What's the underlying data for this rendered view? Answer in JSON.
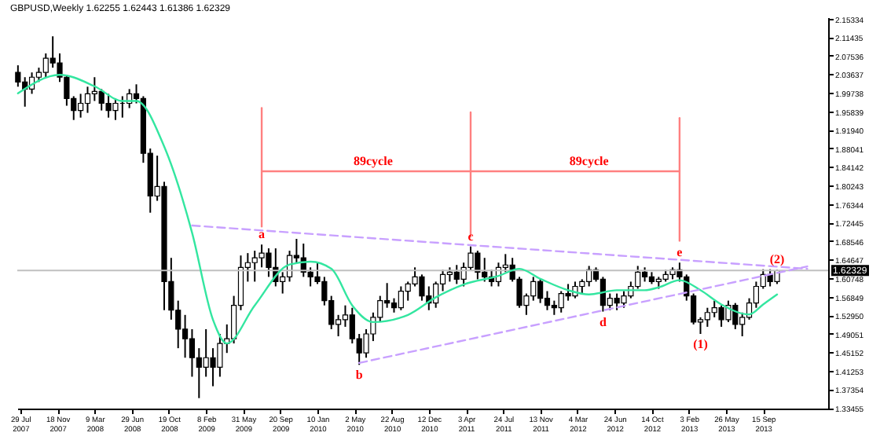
{
  "chart_data": {
    "type": "candlestick",
    "title": "GBPUSD,Weekly  1.62255 1.62443 1.61386 1.62329",
    "x": [
      "2007-07-22",
      "2007-08-12",
      "2007-09-02",
      "2007-09-23",
      "2007-10-14",
      "2007-11-04",
      "2007-11-25",
      "2007-12-16",
      "2008-01-06",
      "2008-01-27",
      "2008-02-17",
      "2008-03-09",
      "2008-03-30",
      "2008-04-20",
      "2008-05-11",
      "2008-06-01",
      "2008-06-22",
      "2008-07-13",
      "2008-08-03",
      "2008-08-24",
      "2008-09-14",
      "2008-10-05",
      "2008-10-26",
      "2008-11-16",
      "2008-12-07",
      "2008-12-28",
      "2009-01-18",
      "2009-02-08",
      "2009-03-01",
      "2009-03-22",
      "2009-04-12",
      "2009-05-03",
      "2009-05-24",
      "2009-06-14",
      "2009-07-05",
      "2009-07-26",
      "2009-08-16",
      "2009-09-06",
      "2009-09-27",
      "2009-10-18",
      "2009-11-08",
      "2009-11-29",
      "2009-12-20",
      "2010-01-10",
      "2010-01-31",
      "2010-02-21",
      "2010-03-14",
      "2010-04-04",
      "2010-04-25",
      "2010-05-16",
      "2010-06-06",
      "2010-06-27",
      "2010-07-18",
      "2010-08-08",
      "2010-08-29",
      "2010-09-19",
      "2010-10-10",
      "2010-10-31",
      "2010-11-21",
      "2010-12-12",
      "2011-01-02",
      "2011-01-23",
      "2011-02-13",
      "2011-03-06",
      "2011-03-27",
      "2011-04-17",
      "2011-05-08",
      "2011-05-29",
      "2011-06-19",
      "2011-07-10",
      "2011-07-31",
      "2011-08-21",
      "2011-09-11",
      "2011-10-02",
      "2011-10-23",
      "2011-11-13",
      "2011-12-04",
      "2011-12-25",
      "2012-01-15",
      "2012-02-05",
      "2012-02-26",
      "2012-03-18",
      "2012-04-08",
      "2012-04-29",
      "2012-05-20",
      "2012-06-10",
      "2012-07-01",
      "2012-07-22",
      "2012-08-12",
      "2012-09-02",
      "2012-09-23",
      "2012-10-14",
      "2012-11-04",
      "2012-11-25",
      "2012-12-16",
      "2013-01-06",
      "2013-01-27",
      "2013-02-17",
      "2013-03-10",
      "2013-03-31",
      "2013-04-21",
      "2013-05-12",
      "2013-06-02",
      "2013-06-23",
      "2013-07-14",
      "2013-08-04",
      "2013-08-25",
      "2013-09-15",
      "2013-10-06",
      "2013-10-27"
    ],
    "ohlc": [
      [
        2.04,
        2.055,
        2.01,
        2.02
      ],
      [
        2.02,
        2.03,
        1.968,
        2.005
      ],
      [
        2.005,
        2.04,
        1.995,
        2.03
      ],
      [
        2.03,
        2.05,
        2.02,
        2.04
      ],
      [
        2.04,
        2.08,
        2.03,
        2.07
      ],
      [
        2.07,
        2.116,
        2.05,
        2.06
      ],
      [
        2.06,
        2.08,
        2.02,
        2.03
      ],
      [
        2.03,
        2.035,
        1.97,
        1.985
      ],
      [
        1.985,
        1.99,
        1.94,
        1.96
      ],
      [
        1.96,
        1.995,
        1.945,
        1.975
      ],
      [
        1.975,
        2.01,
        1.955,
        1.995
      ],
      [
        1.995,
        2.03,
        1.98,
        2.0
      ],
      [
        2.0,
        2.005,
        1.96,
        1.975
      ],
      [
        1.975,
        1.995,
        1.945,
        1.96
      ],
      [
        1.96,
        1.985,
        1.94,
        1.975
      ],
      [
        1.975,
        1.99,
        1.945,
        1.975
      ],
      [
        1.975,
        2.005,
        1.965,
        1.995
      ],
      [
        1.995,
        2.015,
        1.975,
        1.985
      ],
      [
        1.985,
        1.99,
        1.85,
        1.87
      ],
      [
        1.87,
        1.88,
        1.745,
        1.78
      ],
      [
        1.78,
        1.865,
        1.77,
        1.8
      ],
      [
        1.8,
        1.81,
        1.54,
        1.6
      ],
      [
        1.6,
        1.65,
        1.52,
        1.54
      ],
      [
        1.54,
        1.56,
        1.46,
        1.5
      ],
      [
        1.5,
        1.53,
        1.44,
        1.48
      ],
      [
        1.48,
        1.5,
        1.4,
        1.44
      ],
      [
        1.44,
        1.46,
        1.355,
        1.42
      ],
      [
        1.42,
        1.5,
        1.4,
        1.44
      ],
      [
        1.44,
        1.46,
        1.38,
        1.42
      ],
      [
        1.42,
        1.49,
        1.4,
        1.47
      ],
      [
        1.47,
        1.51,
        1.45,
        1.48
      ],
      [
        1.48,
        1.57,
        1.47,
        1.55
      ],
      [
        1.55,
        1.655,
        1.54,
        1.63
      ],
      [
        1.63,
        1.66,
        1.6,
        1.64
      ],
      [
        1.64,
        1.665,
        1.6,
        1.65
      ],
      [
        1.65,
        1.678,
        1.63,
        1.66
      ],
      [
        1.66,
        1.67,
        1.61,
        1.63
      ],
      [
        1.63,
        1.67,
        1.59,
        1.6
      ],
      [
        1.6,
        1.62,
        1.575,
        1.61
      ],
      [
        1.61,
        1.665,
        1.6,
        1.655
      ],
      [
        1.655,
        1.69,
        1.64,
        1.65
      ],
      [
        1.65,
        1.68,
        1.61,
        1.62
      ],
      [
        1.62,
        1.63,
        1.59,
        1.61
      ],
      [
        1.61,
        1.64,
        1.595,
        1.6
      ],
      [
        1.6,
        1.61,
        1.55,
        1.56
      ],
      [
        1.56,
        1.57,
        1.5,
        1.51
      ],
      [
        1.51,
        1.53,
        1.485,
        1.52
      ],
      [
        1.52,
        1.55,
        1.505,
        1.53
      ],
      [
        1.53,
        1.545,
        1.47,
        1.48
      ],
      [
        1.48,
        1.49,
        1.425,
        1.45
      ],
      [
        1.45,
        1.5,
        1.44,
        1.49
      ],
      [
        1.49,
        1.535,
        1.475,
        1.525
      ],
      [
        1.525,
        1.57,
        1.515,
        1.56
      ],
      [
        1.56,
        1.597,
        1.545,
        1.555
      ],
      [
        1.555,
        1.565,
        1.535,
        1.545
      ],
      [
        1.545,
        1.59,
        1.54,
        1.58
      ],
      [
        1.58,
        1.6,
        1.56,
        1.595
      ],
      [
        1.595,
        1.63,
        1.59,
        1.61
      ],
      [
        1.61,
        1.615,
        1.56,
        1.57
      ],
      [
        1.57,
        1.59,
        1.54,
        1.555
      ],
      [
        1.555,
        1.6,
        1.545,
        1.595
      ],
      [
        1.595,
        1.625,
        1.58,
        1.615
      ],
      [
        1.615,
        1.63,
        1.6,
        1.62
      ],
      [
        1.62,
        1.635,
        1.595,
        1.605
      ],
      [
        1.605,
        1.64,
        1.59,
        1.63
      ],
      [
        1.63,
        1.674,
        1.625,
        1.66
      ],
      [
        1.66,
        1.665,
        1.605,
        1.62
      ],
      [
        1.62,
        1.65,
        1.6,
        1.61
      ],
      [
        1.61,
        1.625,
        1.59,
        1.6
      ],
      [
        1.6,
        1.64,
        1.59,
        1.63
      ],
      [
        1.63,
        1.658,
        1.62,
        1.635
      ],
      [
        1.635,
        1.65,
        1.6,
        1.605
      ],
      [
        1.605,
        1.61,
        1.545,
        1.55
      ],
      [
        1.55,
        1.575,
        1.53,
        1.57
      ],
      [
        1.57,
        1.61,
        1.56,
        1.6
      ],
      [
        1.6,
        1.605,
        1.555,
        1.565
      ],
      [
        1.565,
        1.58,
        1.54,
        1.55
      ],
      [
        1.55,
        1.56,
        1.53,
        1.545
      ],
      [
        1.545,
        1.58,
        1.535,
        1.575
      ],
      [
        1.575,
        1.595,
        1.56,
        1.57
      ],
      [
        1.57,
        1.6,
        1.565,
        1.59
      ],
      [
        1.59,
        1.605,
        1.575,
        1.6
      ],
      [
        1.6,
        1.633,
        1.59,
        1.625
      ],
      [
        1.625,
        1.63,
        1.6,
        1.605
      ],
      [
        1.605,
        1.61,
        1.537,
        1.55
      ],
      [
        1.55,
        1.575,
        1.54,
        1.565
      ],
      [
        1.565,
        1.575,
        1.54,
        1.555
      ],
      [
        1.555,
        1.58,
        1.545,
        1.57
      ],
      [
        1.57,
        1.6,
        1.565,
        1.59
      ],
      [
        1.59,
        1.633,
        1.585,
        1.62
      ],
      [
        1.62,
        1.63,
        1.6,
        1.61
      ],
      [
        1.61,
        1.62,
        1.595,
        1.6
      ],
      [
        1.6,
        1.61,
        1.585,
        1.605
      ],
      [
        1.605,
        1.625,
        1.6,
        1.615
      ],
      [
        1.615,
        1.63,
        1.605,
        1.625
      ],
      [
        1.625,
        1.64,
        1.6,
        1.61
      ],
      [
        1.61,
        1.615,
        1.56,
        1.57
      ],
      [
        1.57,
        1.575,
        1.51,
        1.515
      ],
      [
        1.515,
        1.525,
        1.49,
        1.52
      ],
      [
        1.52,
        1.545,
        1.505,
        1.535
      ],
      [
        1.535,
        1.56,
        1.525,
        1.545
      ],
      [
        1.545,
        1.55,
        1.505,
        1.52
      ],
      [
        1.52,
        1.56,
        1.515,
        1.55
      ],
      [
        1.55,
        1.555,
        1.5,
        1.51
      ],
      [
        1.51,
        1.535,
        1.485,
        1.525
      ],
      [
        1.525,
        1.565,
        1.52,
        1.555
      ],
      [
        1.555,
        1.6,
        1.545,
        1.59
      ],
      [
        1.59,
        1.626,
        1.585,
        1.615
      ],
      [
        1.615,
        1.626,
        1.59,
        1.6
      ],
      [
        1.6,
        1.625,
        1.595,
        1.623
      ]
    ],
    "series": [
      {
        "type": "line",
        "color": "#33e6a0",
        "x": [
          "2007-07-22",
          "2007-11-25",
          "2008-03-09",
          "2008-06-01",
          "2008-07-13",
          "2008-10-05",
          "2008-12-28",
          "2009-03-01",
          "2009-04-12",
          "2009-07-05",
          "2009-10-18",
          "2009-12-20",
          "2010-02-21",
          "2010-04-25",
          "2010-06-27",
          "2010-10-10",
          "2011-01-02",
          "2011-03-27",
          "2011-07-10",
          "2011-09-11",
          "2011-11-13",
          "2012-02-05",
          "2012-04-08",
          "2012-07-01",
          "2012-09-23",
          "2012-11-04",
          "2013-01-06",
          "2013-03-10",
          "2013-05-12",
          "2013-08-04",
          "2013-09-15",
          "2013-10-27"
        ],
        "values": [
          1.996,
          2.035,
          2.011,
          1.98,
          1.98,
          1.884,
          1.703,
          1.52,
          1.47,
          1.55,
          1.636,
          1.642,
          1.627,
          1.55,
          1.515,
          1.53,
          1.567,
          1.594,
          1.612,
          1.627,
          1.606,
          1.582,
          1.573,
          1.582,
          1.582,
          1.588,
          1.603,
          1.582,
          1.552,
          1.531,
          1.552,
          1.573
        ]
      },
      {
        "type": "line",
        "color": "#c8a0ff",
        "line_style": "dashed",
        "x": [
          "2008-12-28",
          "2014-01-26"
        ],
        "values": [
          1.718,
          1.627
        ]
      },
      {
        "type": "line",
        "color": "#c8a0ff",
        "line_style": "dashed",
        "x": [
          "2010-05-16",
          "2014-01-26"
        ],
        "values": [
          1.429,
          1.632
        ]
      },
      {
        "type": "line",
        "color": "#ff8080",
        "x": [
          "2009-07-26",
          "2009-07-26"
        ],
        "values": [
          1.965,
          1.716
        ]
      },
      {
        "type": "line",
        "color": "#ff8080",
        "x": [
          "2011-04-17",
          "2011-04-17"
        ],
        "values": [
          1.956,
          1.695
        ]
      },
      {
        "type": "line",
        "color": "#ff8080",
        "x": [
          "2013-01-06",
          "2013-01-06"
        ],
        "values": [
          1.944,
          1.686
        ]
      },
      {
        "type": "line",
        "color": "#ff8080",
        "x": [
          "2009-07-26",
          "2013-01-06"
        ],
        "values": [
          1.832,
          1.832
        ]
      }
    ],
    "annotations": [
      {
        "text": "89cycle",
        "x": "2010-06-27",
        "y": 1.832
      },
      {
        "text": "89cycle",
        "x": "2012-04-08",
        "y": 1.832
      },
      {
        "text": "a",
        "x": "2009-07-26",
        "y": 1.678
      },
      {
        "text": "b",
        "x": "2010-05-16",
        "y": 1.425
      },
      {
        "text": "c",
        "x": "2011-04-17",
        "y": 1.674
      },
      {
        "text": "d",
        "x": "2012-05-20",
        "y": 1.537
      },
      {
        "text": "e",
        "x": "2013-01-06",
        "y": 1.64
      },
      {
        "text": "(1)",
        "x": "2013-03-10",
        "y": 1.49
      },
      {
        "text": "(2)",
        "x": "2013-10-27",
        "y": 1.625
      }
    ],
    "ref_lines": [
      {
        "axis": "y",
        "value": 1.62329,
        "label": "1.62329",
        "color": "#c0c0c0"
      }
    ],
    "xlim": [
      "2007-07-20",
      "2014-03-30"
    ],
    "xticks": [
      {
        "value": "2007-07-29",
        "label": "29 Jul 2007"
      },
      {
        "value": "2007-11-18",
        "label": "18 Nov 2007"
      },
      {
        "value": "2008-03-09",
        "label": "9 Mar 2008"
      },
      {
        "value": "2008-06-29",
        "label": "29 Jun 2008"
      },
      {
        "value": "2008-10-19",
        "label": "19 Oct 2008"
      },
      {
        "value": "2009-02-08",
        "label": "8 Feb 2009"
      },
      {
        "value": "2009-05-31",
        "label": "31 May 2009"
      },
      {
        "value": "2009-09-20",
        "label": "20 Sep 2009"
      },
      {
        "value": "2010-01-10",
        "label": "10 Jan 2010"
      },
      {
        "value": "2010-05-02",
        "label": "2 May 2010"
      },
      {
        "value": "2010-08-22",
        "label": "22 Aug 2010"
      },
      {
        "value": "2010-12-12",
        "label": "12 Dec 2010"
      },
      {
        "value": "2011-04-03",
        "label": "3 Apr 2011"
      },
      {
        "value": "2011-07-24",
        "label": "24 Jul 2011"
      },
      {
        "value": "2011-11-13",
        "label": "13 Nov 2011"
      },
      {
        "value": "2012-03-04",
        "label": "4 Mar 2012"
      },
      {
        "value": "2012-06-24",
        "label": "24 Jun 2012"
      },
      {
        "value": "2012-10-14",
        "label": "14 Oct 2012"
      },
      {
        "value": "2013-02-03",
        "label": "3 Feb 2013"
      },
      {
        "value": "2013-05-26",
        "label": "26 May 2013"
      },
      {
        "value": "2013-09-15",
        "label": "15 Sep 2013"
      }
    ],
    "ylim": [
      1.333,
      2.156
    ],
    "yticks": [
      {
        "value": 1.33455,
        "label": "1.33455"
      },
      {
        "value": 1.37354,
        "label": "1.37354"
      },
      {
        "value": 1.41253,
        "label": "1.41253"
      },
      {
        "value": 1.45152,
        "label": "1.45152"
      },
      {
        "value": 1.49051,
        "label": "1.49051"
      },
      {
        "value": 1.5295,
        "label": "1.52950"
      },
      {
        "value": 1.56849,
        "label": "1.56849"
      },
      {
        "value": 1.60748,
        "label": "1.60748"
      },
      {
        "value": 1.64647,
        "label": "1.64647"
      },
      {
        "value": 1.68546,
        "label": "1.68546"
      },
      {
        "value": 1.72445,
        "label": "1.72445"
      },
      {
        "value": 1.76344,
        "label": "1.76344"
      },
      {
        "value": 1.80243,
        "label": "1.80243"
      },
      {
        "value": 1.84142,
        "label": "1.84142"
      },
      {
        "value": 1.88041,
        "label": "1.88041"
      },
      {
        "value": 1.9194,
        "label": "1.91940"
      },
      {
        "value": 1.95839,
        "label": "1.95839"
      },
      {
        "value": 1.99738,
        "label": "1.99738"
      },
      {
        "value": 2.03637,
        "label": "2.03637"
      },
      {
        "value": 2.07536,
        "label": "2.07536"
      },
      {
        "value": 2.11435,
        "label": "2.11435"
      },
      {
        "value": 2.15334,
        "label": "2.15334"
      }
    ]
  }
}
